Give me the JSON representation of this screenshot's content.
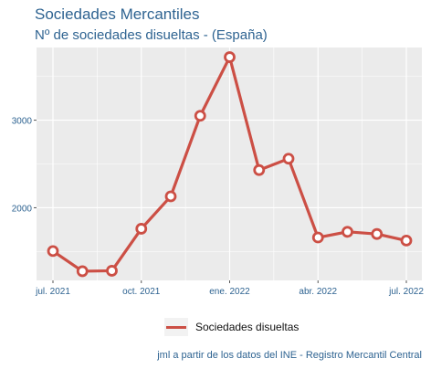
{
  "title": "Sociedades Mercantiles",
  "subtitle": "Nº de sociedades disueltas - (España)",
  "caption": "jml a partir de los datos del INE - Registro Mercantil Central",
  "colors": {
    "line": "#cc4f45",
    "panel": "#ebebeb",
    "grid": "#ffffff",
    "text": "#2e6391"
  },
  "chart_data": {
    "type": "line",
    "x": [
      "2021-07",
      "2021-08",
      "2021-09",
      "2021-10",
      "2021-11",
      "2021-12",
      "2022-01",
      "2022-02",
      "2022-03",
      "2022-04",
      "2022-05",
      "2022-06",
      "2022-07"
    ],
    "series": [
      {
        "name": "Sociedades disueltas",
        "values": [
          1505,
          1275,
          1280,
          1760,
          2130,
          3050,
          3720,
          2430,
          2560,
          1660,
          1725,
          1700,
          1625
        ]
      }
    ],
    "x_tick_labels": [
      "jul. 2021",
      "oct. 2021",
      "ene. 2022",
      "abr. 2022",
      "jul. 2022"
    ],
    "x_tick_positions": [
      "2021-07",
      "2021-10",
      "2022-01",
      "2022-04",
      "2022-07"
    ],
    "y_ticks": [
      2000,
      3000
    ],
    "ylim": [
      1170,
      3830
    ],
    "grid": true,
    "legend_position": "bottom"
  }
}
